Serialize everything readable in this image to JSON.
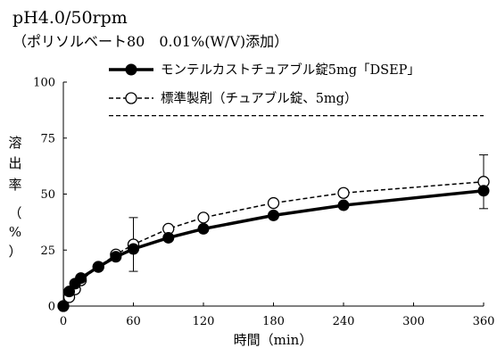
{
  "chart_data": {
    "type": "line",
    "title": "pH4.0/50rpm",
    "subtitle": "（ポリソルベート80　0.01%(W/V)添加）",
    "xlabel": "時間（min）",
    "ylabel": [
      "溶",
      "出",
      "率",
      "（",
      "%",
      "）"
    ],
    "xlim": [
      0,
      360
    ],
    "ylim": [
      0,
      100
    ],
    "xticks": [
      0,
      60,
      120,
      180,
      240,
      300,
      360
    ],
    "yticks": [
      0,
      25,
      50,
      75,
      100
    ],
    "x": [
      0,
      5,
      10,
      15,
      30,
      45,
      60,
      90,
      120,
      180,
      240,
      360
    ],
    "reference_line": {
      "y": 85
    },
    "series": [
      {
        "name": "モンテルカストチュアブル錠5mg「DSEP」",
        "style": "solid",
        "marker": "filled-circle",
        "color": "#000000",
        "values": [
          0,
          6.5,
          10,
          12.5,
          17.5,
          22,
          25.5,
          30.5,
          34.5,
          40.5,
          45,
          51.5
        ],
        "error": {
          "60": 10,
          "360": 8
        }
      },
      {
        "name": "標準製剤（チュアブル錠、5mg）",
        "style": "dashed",
        "marker": "open-circle",
        "color": "#000000",
        "values": [
          0,
          4,
          7.5,
          11.5,
          17.5,
          23,
          27.5,
          34.5,
          39.5,
          46,
          50.5,
          55.5
        ],
        "error": {
          "60": 12,
          "360": 12
        }
      }
    ]
  }
}
